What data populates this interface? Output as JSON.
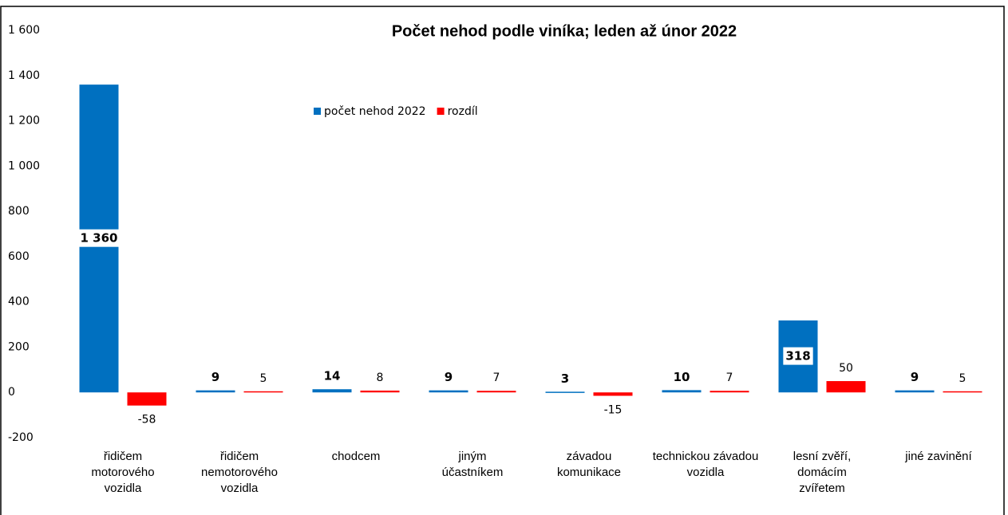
{
  "chart_data": {
    "type": "bar",
    "title": "Počet nehod podle viníka; leden až únor 2022",
    "categories": [
      "řidičem motorového vozidla",
      "řidičem nemotorového vozidla",
      "chodcem",
      "jiným účastníkem",
      "závadou komunikace",
      "technickou závadou vozidla",
      "lesní zvěří, domácím zvířetem",
      "jiné zavinění"
    ],
    "series": [
      {
        "name": "počet nehod 2022",
        "color": "#0070c0",
        "values": [
          1360,
          9,
          14,
          9,
          3,
          10,
          318,
          9
        ],
        "value_labels": [
          "1 360",
          "9",
          "14",
          "9",
          "3",
          "10",
          "318",
          "9"
        ]
      },
      {
        "name": "rozdíl",
        "color": "#ff0000",
        "values": [
          -58,
          5,
          8,
          7,
          -15,
          7,
          50,
          5
        ]
      }
    ],
    "ylim": [
      -200,
      1600
    ],
    "yticks": [
      -200,
      0,
      200,
      400,
      600,
      800,
      {
        "value": 1000,
        "label": "1 000"
      },
      {
        "value": 1200,
        "label": "1 200"
      },
      {
        "value": 1400,
        "label": "1 400"
      },
      {
        "value": 1600,
        "label": "1 600"
      }
    ],
    "grid": false,
    "legend": "top"
  }
}
